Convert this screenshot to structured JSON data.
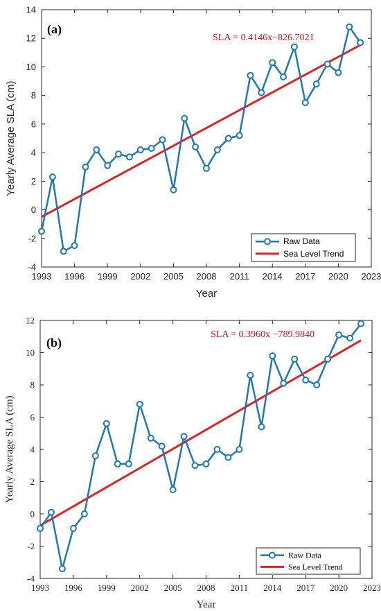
{
  "colors": {
    "raw": "#1f77b4",
    "trend": "#d62728",
    "equation": "#c0141b"
  },
  "chart_data": [
    {
      "type": "line",
      "panel_label": "(a)",
      "xlabel": "Year",
      "ylabel": "Yearly Average SLA (cm)",
      "xlim": [
        1993,
        2023
      ],
      "ylim": [
        -4,
        14
      ],
      "xticks": [
        1993,
        1996,
        1999,
        2002,
        2005,
        2008,
        2011,
        2014,
        2017,
        2020,
        2023
      ],
      "yticks": [
        -4,
        -2,
        0,
        2,
        4,
        6,
        8,
        10,
        12,
        14
      ],
      "equation": "SLA = 0.4146x−826.7021",
      "legend_position": "bottom-right",
      "series": [
        {
          "name": "Raw Data",
          "x": [
            1993,
            1994,
            1995,
            1996,
            1997,
            1998,
            1999,
            2000,
            2001,
            2002,
            2003,
            2004,
            2005,
            2006,
            2007,
            2008,
            2009,
            2010,
            2011,
            2012,
            2013,
            2014,
            2015,
            2016,
            2017,
            2018,
            2019,
            2020,
            2021,
            2022
          ],
          "values": [
            -1.5,
            2.3,
            -2.9,
            -2.5,
            3.0,
            4.2,
            3.1,
            3.9,
            3.7,
            4.2,
            4.3,
            4.9,
            1.4,
            6.4,
            4.4,
            2.9,
            4.2,
            5.0,
            5.2,
            9.4,
            8.2,
            10.3,
            9.3,
            11.4,
            7.5,
            8.8,
            10.2,
            9.6,
            12.8,
            11.7
          ]
        },
        {
          "name": "Sea Level Trend",
          "x": [
            1993,
            2022
          ],
          "values": [
            -0.49,
            11.53
          ]
        }
      ]
    },
    {
      "type": "line",
      "panel_label": "(b)",
      "xlabel": "Year",
      "ylabel": "Yearly Average SLA (cm)",
      "xlim": [
        1993,
        2023
      ],
      "ylim": [
        -4,
        12
      ],
      "xticks": [
        1993,
        1996,
        1999,
        2002,
        2005,
        2008,
        2011,
        2014,
        2017,
        2020,
        2023
      ],
      "yticks": [
        -4,
        -2,
        0,
        2,
        4,
        6,
        8,
        10,
        12
      ],
      "equation": "SLA = 0.3960x −789.9840",
      "legend_position": "bottom-right",
      "series": [
        {
          "name": "Raw Data",
          "x": [
            1993,
            1994,
            1995,
            1996,
            1997,
            1998,
            1999,
            2000,
            2001,
            2002,
            2003,
            2004,
            2005,
            2006,
            2007,
            2008,
            2009,
            2010,
            2011,
            2012,
            2013,
            2014,
            2015,
            2016,
            2017,
            2018,
            2019,
            2020,
            2021,
            2022
          ],
          "values": [
            -0.9,
            0.1,
            -3.4,
            -0.9,
            0.0,
            3.6,
            5.6,
            3.1,
            3.1,
            6.8,
            4.7,
            4.2,
            1.5,
            4.8,
            3.0,
            3.1,
            4.0,
            3.5,
            4.0,
            8.6,
            5.4,
            9.8,
            8.1,
            9.6,
            8.3,
            8.0,
            9.6,
            11.1,
            10.9,
            11.8
          ]
        },
        {
          "name": "Sea Level Trend",
          "x": [
            1993,
            2022
          ],
          "values": [
            -0.72,
            10.76
          ]
        }
      ]
    }
  ]
}
